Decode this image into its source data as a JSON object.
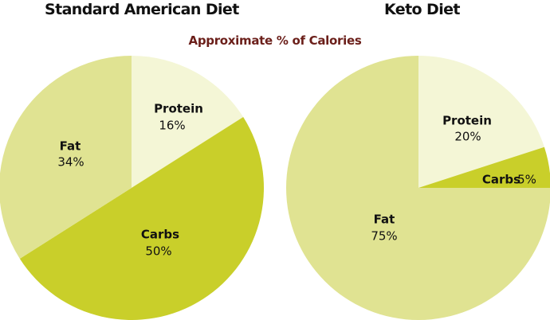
{
  "subtitle": "Approximate % of Calories",
  "chart_data": [
    {
      "type": "pie",
      "title": "Standard American Diet",
      "slices": [
        {
          "label": "Protein",
          "value": 16,
          "display": "16%",
          "color": "#f4f6d6"
        },
        {
          "label": "Carbs",
          "value": 50,
          "display": "50%",
          "color": "#c9cf2a"
        },
        {
          "label": "Fat",
          "value": 34,
          "display": "34%",
          "color": "#e0e392"
        }
      ]
    },
    {
      "type": "pie",
      "title": "Keto Diet",
      "slices": [
        {
          "label": "Protein",
          "value": 20,
          "display": "20%",
          "color": "#f4f6d6"
        },
        {
          "label": "Carbs",
          "value": 5,
          "display": "5%",
          "color": "#c9cf2a"
        },
        {
          "label": "Fat",
          "value": 75,
          "display": "75%",
          "color": "#e0e392"
        }
      ]
    }
  ]
}
